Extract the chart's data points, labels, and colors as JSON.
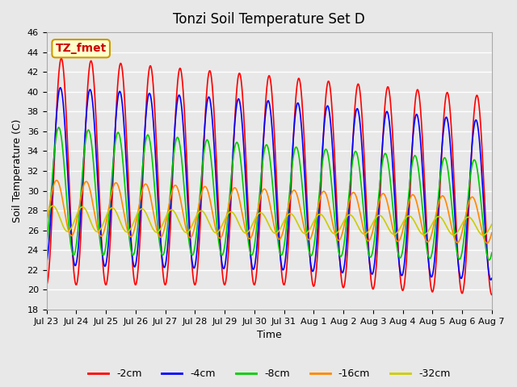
{
  "title": "Tonzi Soil Temperature Set D",
  "xlabel": "Time",
  "ylabel": "Soil Temperature (C)",
  "ylim": [
    18,
    46
  ],
  "yticks": [
    18,
    20,
    22,
    24,
    26,
    28,
    30,
    32,
    34,
    36,
    38,
    40,
    42,
    44,
    46
  ],
  "x_tick_labels": [
    "Jul 23",
    "Jul 24",
    "Jul 25",
    "Jul 26",
    "Jul 27",
    "Jul 28",
    "Jul 29",
    "Jul 30",
    "Jul 31",
    "Aug 1",
    "Aug 2",
    "Aug 3",
    "Aug 4",
    "Aug 5",
    "Aug 6",
    "Aug 7"
  ],
  "x_tick_positions": [
    0,
    1,
    2,
    3,
    4,
    5,
    6,
    7,
    8,
    9,
    10,
    11,
    12,
    13,
    14,
    15
  ],
  "annotation_text": "TZ_fmet",
  "annotation_bg": "#ffffcc",
  "annotation_border": "#cc9900",
  "annotation_textcolor": "#cc0000",
  "series": [
    {
      "label": "-2cm",
      "color": "#ff0000"
    },
    {
      "label": "-4cm",
      "color": "#0000ff"
    },
    {
      "label": "-8cm",
      "color": "#00cc00"
    },
    {
      "label": "-16cm",
      "color": "#ff8800"
    },
    {
      "label": "-32cm",
      "color": "#cccc00"
    }
  ],
  "bg_color": "#e8e8e8",
  "plot_bg_color": "#e8e8e8",
  "grid_color": "#ffffff",
  "n_points": 2000,
  "x_start": 0,
  "x_end": 15
}
